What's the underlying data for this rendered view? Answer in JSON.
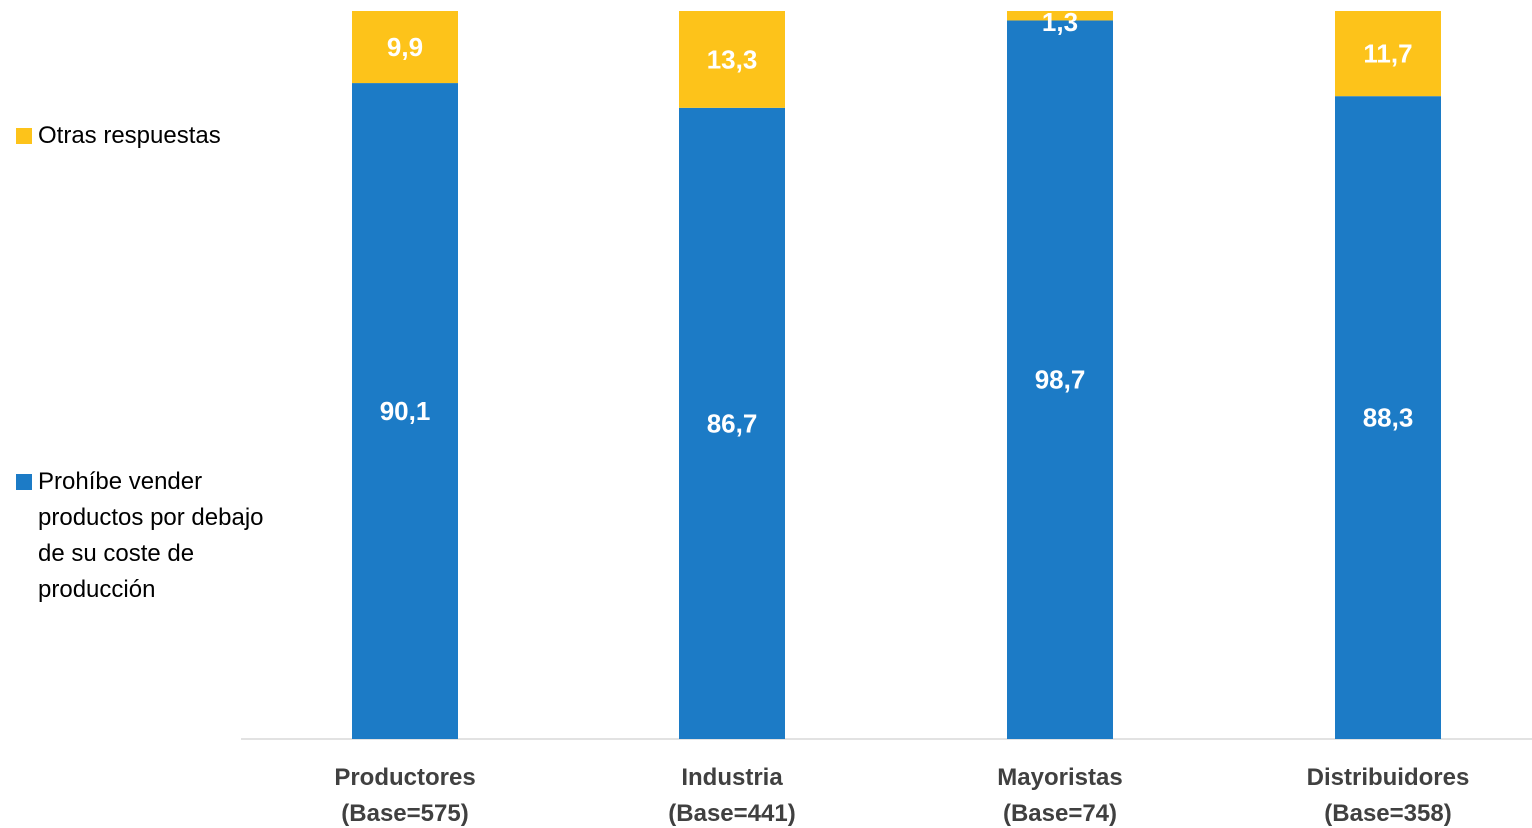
{
  "chart_data": {
    "type": "bar",
    "stacked": true,
    "orientation": "vertical",
    "categories": [
      [
        "Productores",
        "(Base=575)"
      ],
      [
        "Industria",
        "(Base=441)"
      ],
      [
        "Mayoristas",
        "(Base=74)"
      ],
      [
        "Distribuidores",
        "(Base=358)"
      ]
    ],
    "series": [
      {
        "name": "Prohíbe vender productos por debajo de su coste de producción",
        "color": "#1c7bc6",
        "values": [
          90.1,
          86.7,
          98.7,
          88.3
        ],
        "labels": [
          "90,1",
          "86,7",
          "98,7",
          "88,3"
        ]
      },
      {
        "name": "Otras respuestas",
        "color": "#fdc31a",
        "values": [
          9.9,
          13.3,
          1.3,
          11.7
        ],
        "labels": [
          "9,9",
          "13,3",
          "1,3",
          "11,7"
        ]
      }
    ],
    "ylim": [
      0,
      100
    ],
    "grid": false,
    "legend_position": "left"
  }
}
